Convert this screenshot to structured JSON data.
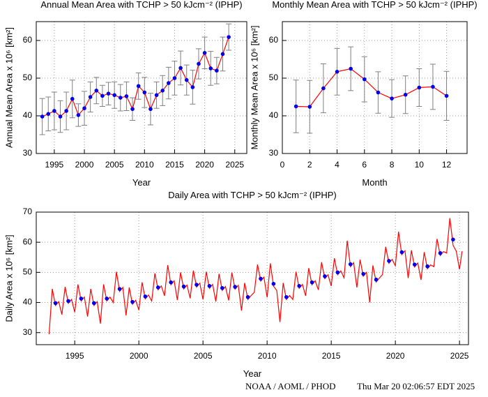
{
  "chart_data": [
    {
      "type": "errorline",
      "title": "Annual Mean Area with TCHP > 50 kJcm⁻² (IPHP)",
      "x_label": "Year",
      "y_label": "Annual Mean Area x 10⁶ [km²]",
      "x": [
        1993,
        1994,
        1995,
        1996,
        1997,
        1998,
        1999,
        2000,
        2001,
        2002,
        2003,
        2004,
        2005,
        2006,
        2007,
        2008,
        2009,
        2010,
        2011,
        2012,
        2013,
        2014,
        2015,
        2016,
        2017,
        2018,
        2019,
        2020,
        2021,
        2022,
        2023,
        2024
      ],
      "values": [
        39.8,
        40.5,
        41.3,
        39.8,
        41.3,
        44.5,
        40.2,
        42.0,
        45.0,
        46.7,
        45.3,
        45.9,
        45.5,
        44.8,
        45.2,
        41.8,
        47.9,
        46.2,
        41.8,
        45.5,
        46.7,
        48.7,
        50.0,
        52.7,
        49.5,
        47.6,
        53.8,
        56.7,
        52.6,
        52.0,
        56.4,
        60.9
      ],
      "errors": [
        4.8,
        4.5,
        5.0,
        4.2,
        5.0,
        5.0,
        3.0,
        4.5,
        4.0,
        3.5,
        2.8,
        3.0,
        3.5,
        3.5,
        3.8,
        3.0,
        3.5,
        4.0,
        4.2,
        3.5,
        4.0,
        4.2,
        4.5,
        4.5,
        4.0,
        4.5,
        4.0,
        4.2,
        4.5,
        3.5,
        4.5,
        3.5
      ],
      "xlim": [
        1992,
        2027
      ],
      "ylim": [
        30,
        65
      ],
      "xticks": [
        1995,
        2000,
        2005,
        2010,
        2015,
        2020,
        2025
      ],
      "yticks": [
        30,
        40,
        50,
        60
      ],
      "line_color": "#ff0000",
      "marker_color": "#0000ee",
      "error_color": "#808080",
      "grid": true
    },
    {
      "type": "errorline",
      "title": "Monthly Mean Area with TCHP > 50 kJcm⁻² (IPHP)",
      "x_label": "Month",
      "y_label": "Monthly Mean Area x 10⁶ [km²]",
      "x": [
        1,
        2,
        3,
        4,
        5,
        6,
        7,
        8,
        9,
        10,
        11,
        12
      ],
      "values": [
        42.5,
        42.4,
        47.3,
        51.7,
        52.5,
        49.7,
        46.2,
        44.6,
        45.6,
        47.5,
        47.7,
        45.3
      ],
      "errors": [
        7.0,
        7.0,
        6.5,
        6.2,
        5.8,
        6.0,
        5.5,
        5.0,
        5.0,
        5.0,
        6.0,
        6.5
      ],
      "xlim": [
        0,
        13.5
      ],
      "ylim": [
        30,
        65
      ],
      "xticks": [
        0,
        2,
        4,
        6,
        8,
        10,
        12
      ],
      "yticks": [
        30,
        40,
        50,
        60
      ],
      "line_color": "#ff0000",
      "marker_color": "#0000ee",
      "error_color": "#808080",
      "grid": true
    },
    {
      "type": "line",
      "title": "Daily Area with TCHP > 50 kJcm⁻² (IPHP)",
      "x_label": "Year",
      "y_label": "Daily Area x 10⁶ [km²]",
      "x": [
        1993.0,
        1993.25,
        1993.5,
        1993.75,
        1994.0,
        1994.25,
        1994.5,
        1994.75,
        1995.0,
        1995.25,
        1995.5,
        1995.75,
        1996.0,
        1996.25,
        1996.5,
        1996.75,
        1997.0,
        1997.25,
        1997.5,
        1997.75,
        1998.0,
        1998.25,
        1998.5,
        1998.75,
        1999.0,
        1999.25,
        1999.5,
        1999.75,
        2000.0,
        2000.25,
        2000.5,
        2000.75,
        2001.0,
        2001.25,
        2001.5,
        2001.75,
        2002.0,
        2002.25,
        2002.5,
        2002.75,
        2003.0,
        2003.25,
        2003.5,
        2003.75,
        2004.0,
        2004.25,
        2004.5,
        2004.75,
        2005.0,
        2005.25,
        2005.5,
        2005.75,
        2006.0,
        2006.25,
        2006.5,
        2006.75,
        2007.0,
        2007.25,
        2007.5,
        2007.75,
        2008.0,
        2008.25,
        2008.5,
        2008.75,
        2009.0,
        2009.25,
        2009.5,
        2009.75,
        2010.0,
        2010.25,
        2010.5,
        2010.75,
        2011.0,
        2011.25,
        2011.5,
        2011.75,
        2012.0,
        2012.25,
        2012.5,
        2012.75,
        2013.0,
        2013.25,
        2013.5,
        2013.75,
        2014.0,
        2014.25,
        2014.5,
        2014.75,
        2015.0,
        2015.25,
        2015.5,
        2015.75,
        2016.0,
        2016.25,
        2016.5,
        2016.75,
        2017.0,
        2017.25,
        2017.5,
        2017.75,
        2018.0,
        2018.25,
        2018.5,
        2018.75,
        2019.0,
        2019.25,
        2019.5,
        2019.75,
        2020.0,
        2020.25,
        2020.5,
        2020.75,
        2021.0,
        2021.25,
        2021.5,
        2021.75,
        2022.0,
        2022.25,
        2022.5,
        2022.75,
        2023.0,
        2023.25,
        2023.5,
        2023.75,
        2024.0,
        2024.25,
        2024.5,
        2024.75,
        2025.0,
        2025.2
      ],
      "values": [
        29.5,
        44.5,
        39.0,
        40.3,
        36.0,
        45.2,
        39.7,
        41.0,
        36.8,
        46.0,
        40.5,
        41.8,
        35.3,
        44.5,
        39.0,
        40.3,
        33.0,
        46.0,
        40.5,
        41.8,
        40.0,
        50.2,
        43.7,
        45.0,
        35.7,
        45.0,
        39.4,
        40.7,
        37.5,
        46.7,
        41.2,
        42.5,
        40.5,
        49.7,
        44.2,
        45.5,
        42.2,
        52.4,
        45.9,
        47.2,
        40.8,
        50.0,
        44.5,
        45.8,
        41.4,
        50.6,
        45.1,
        46.4,
        41.0,
        50.2,
        44.7,
        46.0,
        40.3,
        49.5,
        44.0,
        45.3,
        40.7,
        49.9,
        44.4,
        45.7,
        37.3,
        46.5,
        41.0,
        42.3,
        43.4,
        52.6,
        47.1,
        48.4,
        41.7,
        53.0,
        45.4,
        44.0,
        33.5,
        46.5,
        41.0,
        42.3,
        41.0,
        50.2,
        44.7,
        46.0,
        42.2,
        51.4,
        45.9,
        47.2,
        44.2,
        53.4,
        47.9,
        49.2,
        45.5,
        54.7,
        49.2,
        50.5,
        48.2,
        60.5,
        51.9,
        53.2,
        45.0,
        54.2,
        48.7,
        50.0,
        40.0,
        52.3,
        46.8,
        48.1,
        49.3,
        58.5,
        53.0,
        54.3,
        52.2,
        63.5,
        55.9,
        57.2,
        48.1,
        57.3,
        51.8,
        53.1,
        47.5,
        56.7,
        51.2,
        52.5,
        51.9,
        61.1,
        55.6,
        56.9,
        56.4,
        68.0,
        59.0,
        57.0,
        51.0,
        57.0
      ],
      "markers": {
        "x": [
          1993.5,
          1994.5,
          1995.5,
          1996.5,
          1997.5,
          1998.5,
          1999.5,
          2000.5,
          2001.5,
          2002.5,
          2003.5,
          2004.5,
          2005.5,
          2006.5,
          2007.5,
          2008.5,
          2009.5,
          2010.5,
          2011.5,
          2012.5,
          2013.5,
          2014.5,
          2015.5,
          2016.5,
          2017.5,
          2018.5,
          2019.5,
          2020.5,
          2021.5,
          2022.5,
          2023.5,
          2024.5
        ],
        "values": [
          39.8,
          40.5,
          41.3,
          39.8,
          41.3,
          44.5,
          40.2,
          42.0,
          45.0,
          46.7,
          45.3,
          45.9,
          45.5,
          44.8,
          45.2,
          41.8,
          47.9,
          46.2,
          41.8,
          45.5,
          46.7,
          48.7,
          50.0,
          52.7,
          49.5,
          47.6,
          53.8,
          56.7,
          52.6,
          52.0,
          56.4,
          60.9
        ],
        "color": "#0000ee"
      },
      "xlim": [
        1992,
        2025.7
      ],
      "ylim": [
        26,
        70
      ],
      "xticks": [
        1995,
        2000,
        2005,
        2010,
        2015,
        2020,
        2025
      ],
      "yticks": [
        30,
        40,
        50,
        60,
        70
      ],
      "line_color": "#ff0000",
      "grid": true
    }
  ],
  "footer": {
    "left": "NOAA / AOML / PHOD",
    "right": "Thu Mar 20 02:06:57 EDT 2025"
  }
}
